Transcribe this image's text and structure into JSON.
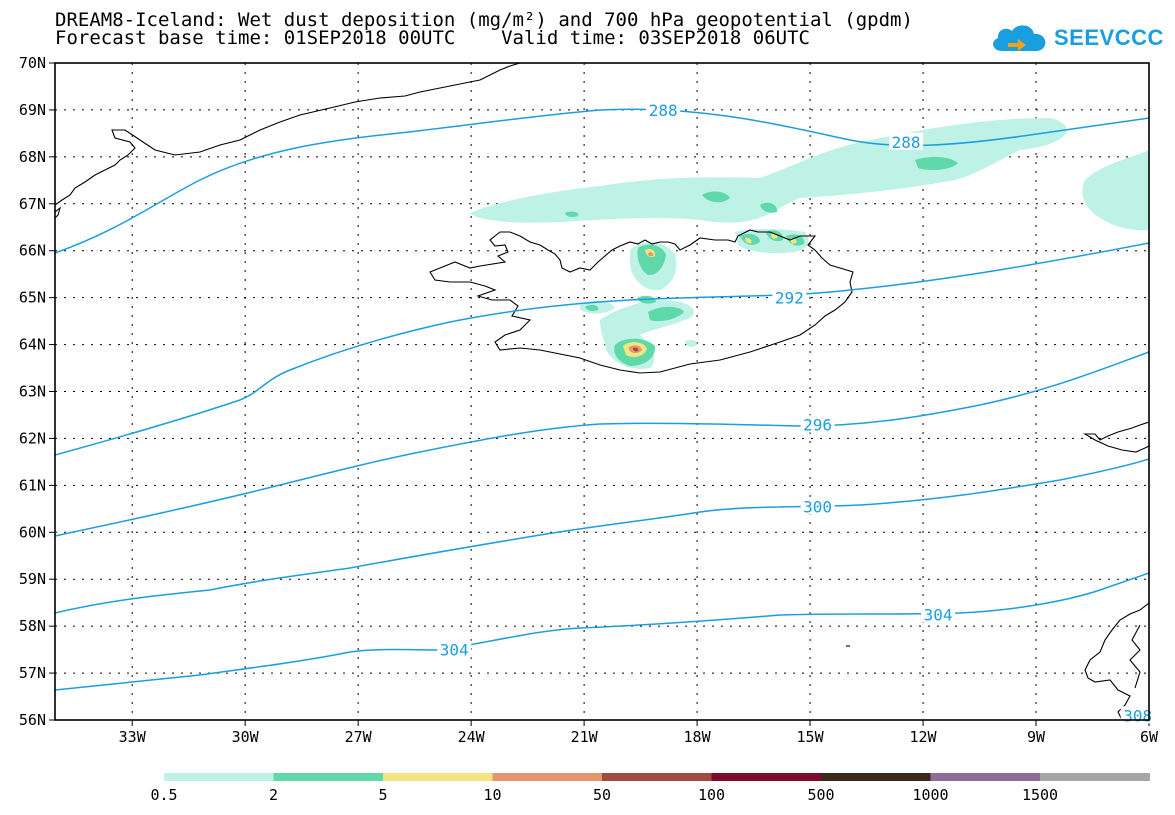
{
  "header": {
    "title_line1": "DREAM8-Iceland: Wet dust deposition (mg/m²) and 700 hPa geopotential (gpdm)",
    "title_line2": "Forecast base time: 01SEP2018 00UTC    Valid time: 03SEP2018 06UTC",
    "logo_text": "SEEVCCC"
  },
  "map": {
    "lat_labels": [
      "70N",
      "69N",
      "68N",
      "67N",
      "66N",
      "65N",
      "64N",
      "63N",
      "62N",
      "61N",
      "60N",
      "59N",
      "58N",
      "57N",
      "56N"
    ],
    "lon_labels": [
      "33W",
      "30W",
      "27W",
      "24W",
      "21W",
      "18W",
      "15W",
      "12W",
      "9W",
      "6W"
    ],
    "lon_values": [
      -33,
      -30,
      -27,
      -24,
      -21,
      -18,
      -15,
      -12,
      -9,
      -6
    ],
    "lat_range": [
      56,
      70
    ],
    "lon_range": [
      -35.05,
      -6
    ],
    "contour_labels": [
      {
        "text": "288",
        "lon": -18.9,
        "lat": 69.0
      },
      {
        "text": "288",
        "lon": -12.45,
        "lat": 68.32
      },
      {
        "text": "292",
        "lon": -15.55,
        "lat": 65.0
      },
      {
        "text": "296",
        "lon": -14.8,
        "lat": 62.3
      },
      {
        "text": "300",
        "lon": -14.8,
        "lat": 60.55
      },
      {
        "text": "304",
        "lon": -24.45,
        "lat": 57.5
      },
      {
        "text": "304",
        "lon": -11.6,
        "lat": 58.25
      },
      {
        "text": "308",
        "lon": -6.3,
        "lat": 56.1
      }
    ],
    "contour_color": "#1a9ee0"
  },
  "legend": {
    "labels": [
      "0.5",
      "2",
      "5",
      "10",
      "50",
      "100",
      "500",
      "1000",
      "1500"
    ],
    "colors": [
      "#bff2e6",
      "#5fd9aa",
      "#f2e680",
      "#e6966e",
      "#a04a41",
      "#7f0a2e",
      "#3b2a1c",
      "#8e6c9c",
      "#a6a6a6"
    ]
  }
}
